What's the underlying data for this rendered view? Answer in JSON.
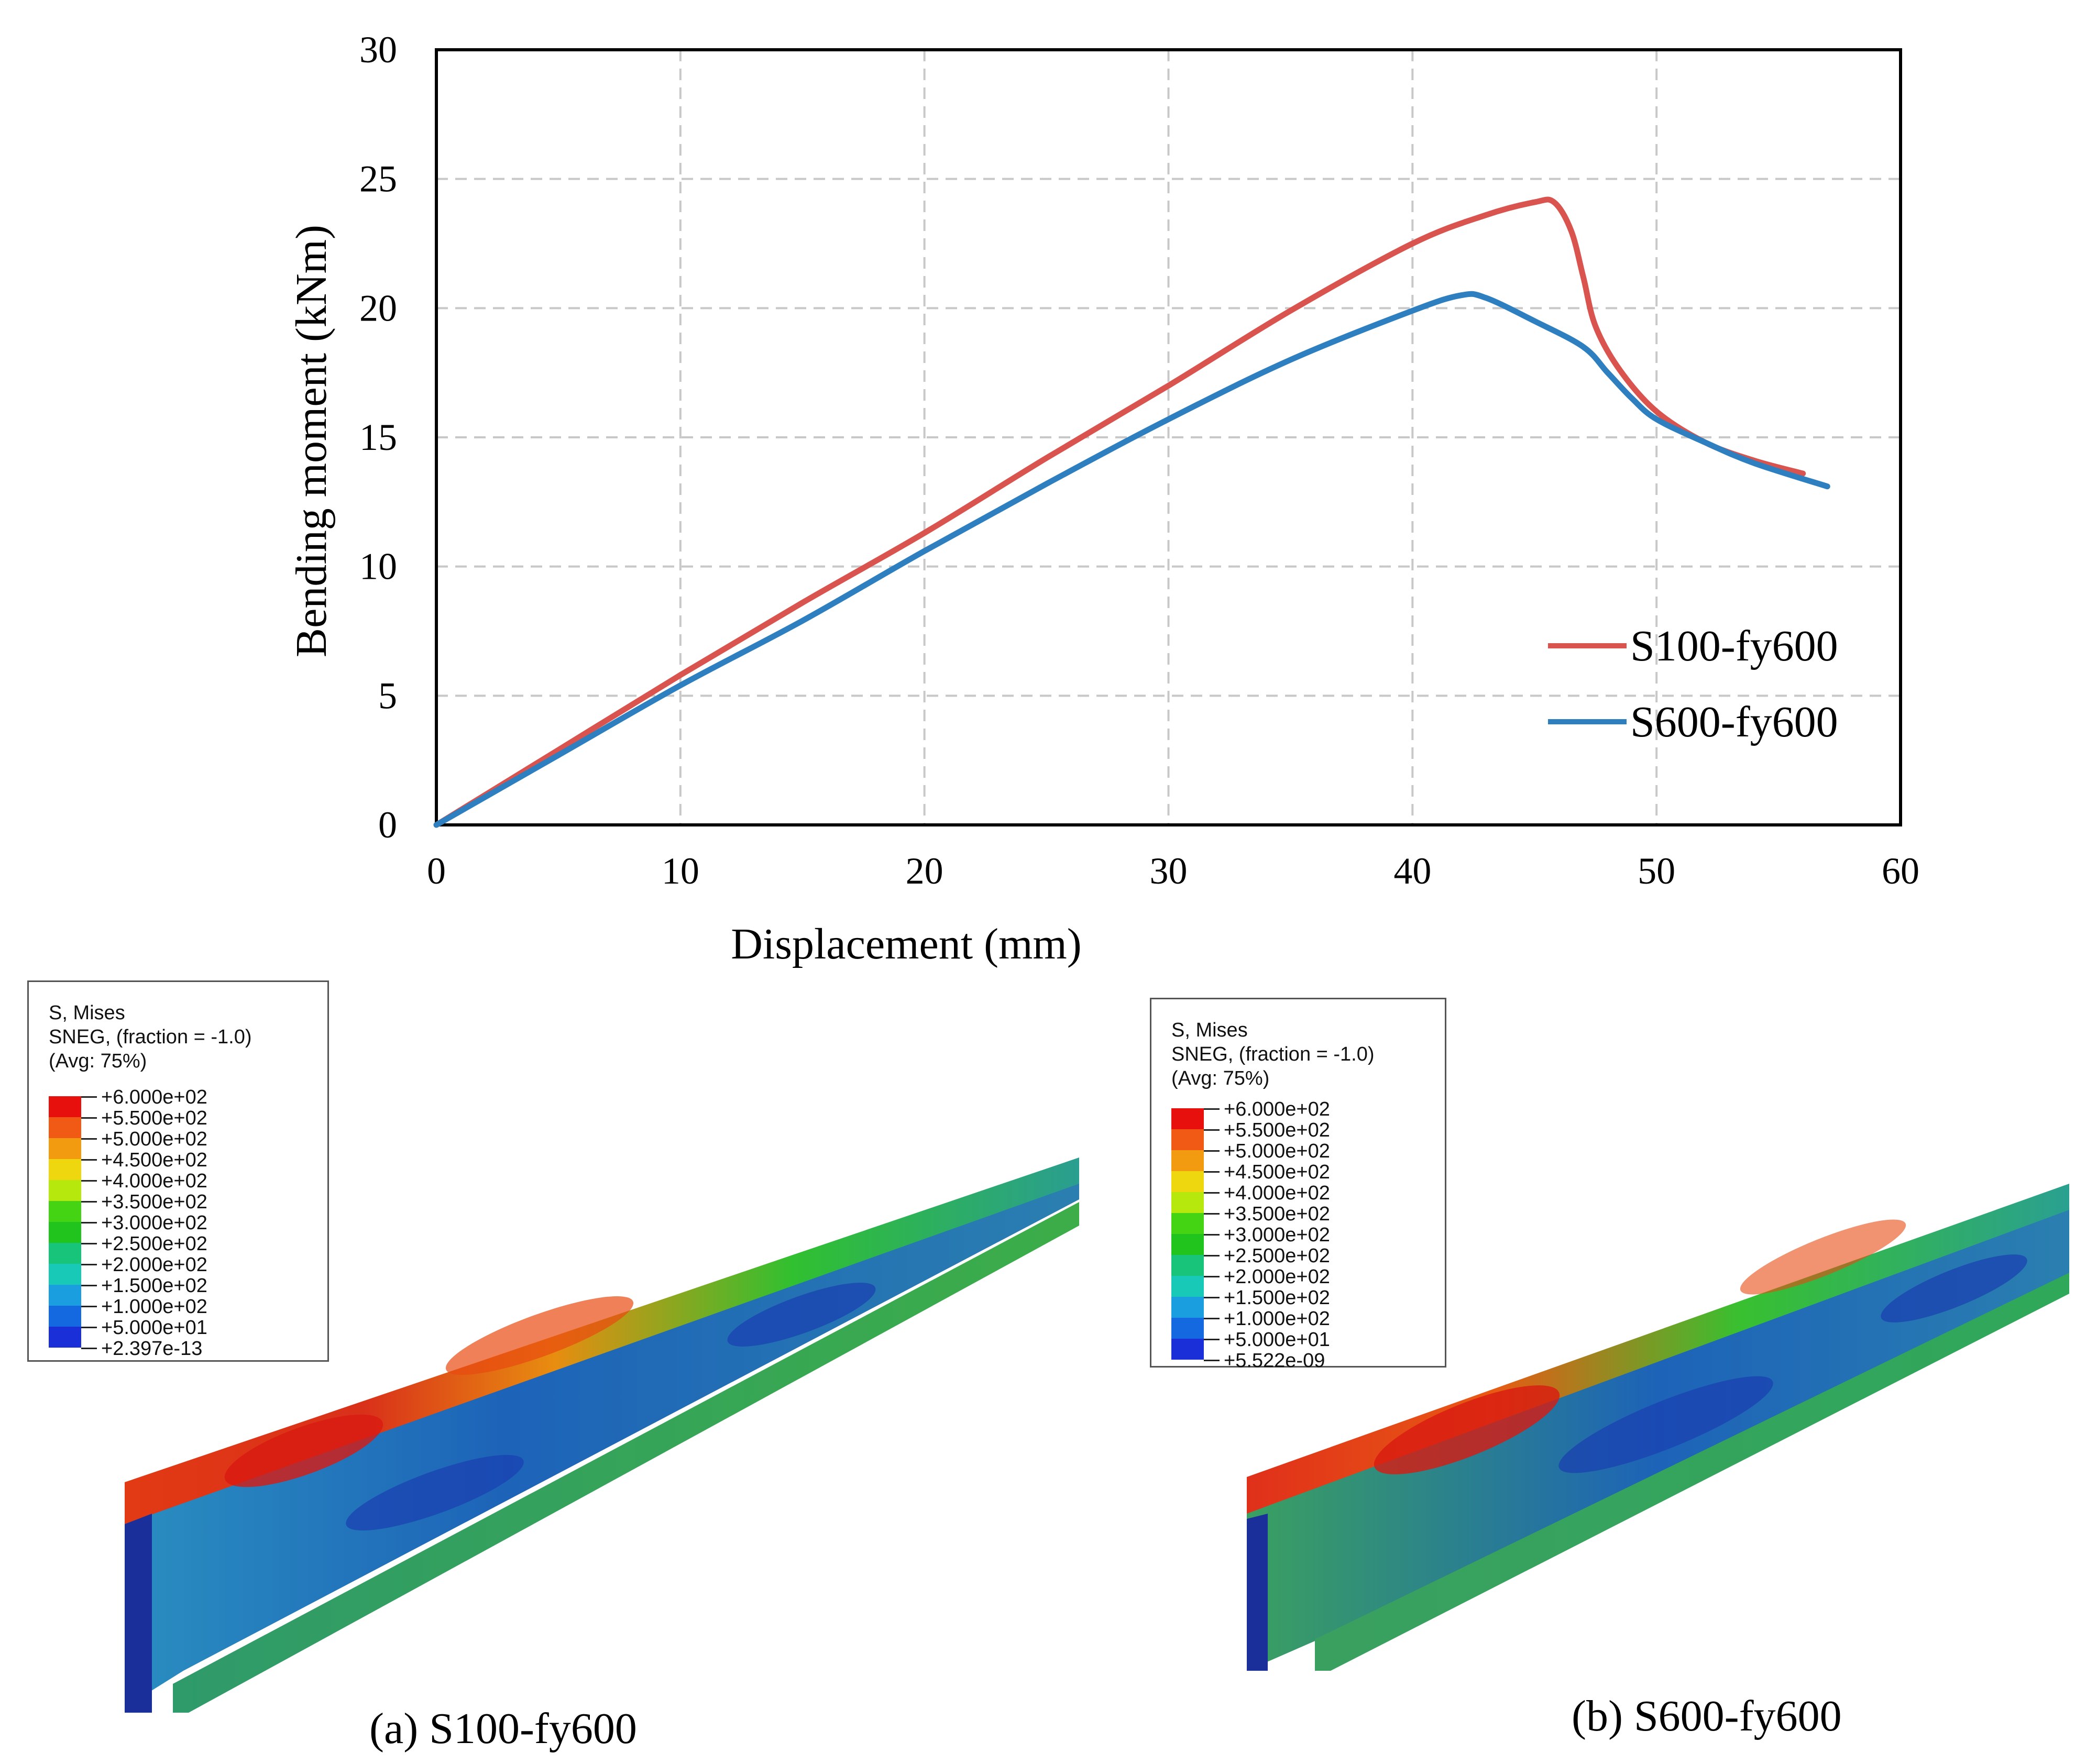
{
  "chart_data": {
    "type": "line",
    "xlabel": "Displacement (mm)",
    "ylabel": "Bending moment (kNm)",
    "xlim": [
      0,
      60
    ],
    "ylim": [
      0,
      30
    ],
    "xticks": [
      "0",
      "10",
      "20",
      "30",
      "40",
      "50",
      "60"
    ],
    "yticks": [
      "0",
      "5",
      "10",
      "15",
      "20",
      "25",
      "30"
    ],
    "grid": true,
    "legend_position": "bottom-right",
    "series": [
      {
        "name": "S100-fy600",
        "color": "#d9534f",
        "x": [
          0,
          5,
          10,
          15,
          20,
          25,
          30,
          35,
          40,
          43,
          45,
          45.8,
          46.5,
          47,
          47.5,
          48.5,
          50,
          52,
          54,
          56
        ],
        "y": [
          0,
          2.9,
          5.8,
          8.6,
          11.3,
          14.2,
          17.0,
          19.9,
          22.5,
          23.6,
          24.1,
          24.1,
          23.0,
          21.2,
          19.3,
          17.6,
          16.0,
          14.8,
          14.1,
          13.6
        ]
      },
      {
        "name": "S600-fy600",
        "color": "#2e7fbf",
        "x": [
          0,
          5,
          10,
          15,
          20,
          25,
          30,
          35,
          40,
          42,
          43,
          45,
          47,
          48,
          49,
          50,
          52,
          54,
          57
        ],
        "y": [
          0,
          2.7,
          5.4,
          7.9,
          10.6,
          13.2,
          15.7,
          18.0,
          19.9,
          20.5,
          20.4,
          19.5,
          18.5,
          17.5,
          16.5,
          15.7,
          14.8,
          14.0,
          13.1
        ]
      }
    ]
  },
  "panels": {
    "a": {
      "caption": "(a) S100-fy600",
      "legend_header": "S, Mises\nSNEG, (fraction = -1.0)\n(Avg: 75%)",
      "min_label": "+2.397e-13"
    },
    "b": {
      "caption": "(b) S600-fy600",
      "legend_header": "S, Mises\nSNEG, (fraction = -1.0)\n(Avg: 75%)",
      "min_label": "+5.522e-09"
    }
  },
  "contour_levels": [
    "+6.000e+02",
    "+5.500e+02",
    "+5.000e+02",
    "+4.500e+02",
    "+4.000e+02",
    "+3.500e+02",
    "+3.000e+02",
    "+2.500e+02",
    "+2.000e+02",
    "+1.500e+02",
    "+1.000e+02",
    "+5.000e+01"
  ],
  "contour_colors": [
    "#e8100c",
    "#f05a14",
    "#f29a10",
    "#eed70e",
    "#b6e80e",
    "#44d414",
    "#20c41c",
    "#18c37a",
    "#17c9b6",
    "#1a9ee0",
    "#1468e0",
    "#1a2fd8"
  ]
}
